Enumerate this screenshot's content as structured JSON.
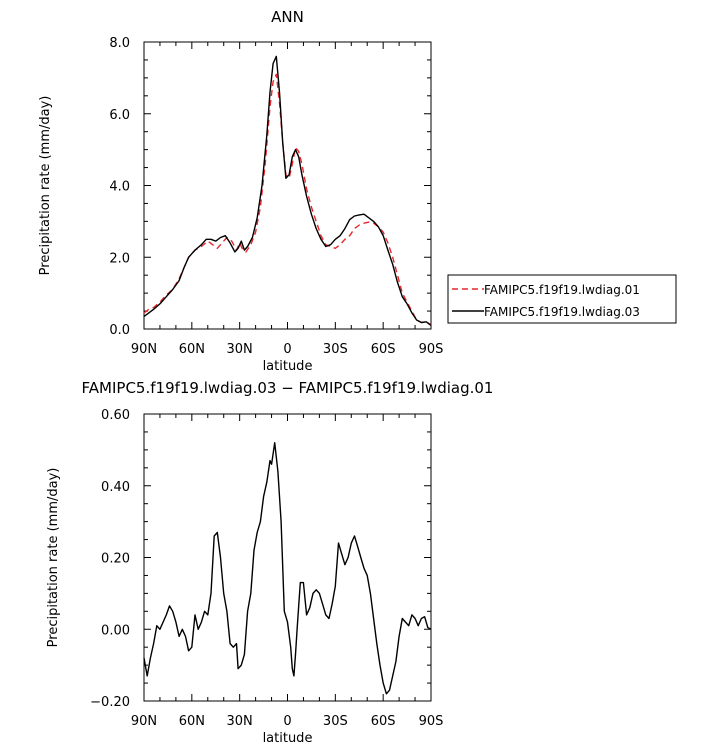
{
  "chart_data": [
    {
      "type": "line",
      "title": "ANN",
      "xlabel": "latitude",
      "ylabel": "Precipitation rate (mm/day)",
      "xlim": [
        90,
        -90
      ],
      "ylim": [
        0,
        8
      ],
      "x_ticks": [
        90,
        60,
        30,
        0,
        -30,
        -60,
        -90
      ],
      "x_tick_labels": [
        "90N",
        "60N",
        "30N",
        "0",
        "30S",
        "60S",
        "90S"
      ],
      "y_ticks": [
        0,
        2,
        4,
        6,
        8
      ],
      "y_tick_labels": [
        "0.0",
        "2.0",
        "4.0",
        "6.0",
        "8.0"
      ],
      "legend": "right",
      "series": [
        {
          "name": "FAMIPC5.f19f19.lwdiag.01",
          "color": "#e8262d",
          "dash": "dashed",
          "points": [
            [
              90,
              0.45
            ],
            [
              87,
              0.55
            ],
            [
              84,
              0.6
            ],
            [
              80,
              0.75
            ],
            [
              76,
              0.95
            ],
            [
              72,
              1.1
            ],
            [
              68,
              1.4
            ],
            [
              65,
              1.7
            ],
            [
              62,
              2.0
            ],
            [
              58,
              2.2
            ],
            [
              54,
              2.3
            ],
            [
              50,
              2.45
            ],
            [
              47,
              2.35
            ],
            [
              44,
              2.25
            ],
            [
              41,
              2.4
            ],
            [
              38,
              2.55
            ],
            [
              35,
              2.45
            ],
            [
              32,
              2.2
            ],
            [
              30,
              2.4
            ],
            [
              28,
              2.2
            ],
            [
              26,
              2.15
            ],
            [
              23,
              2.35
            ],
            [
              20,
              2.7
            ],
            [
              17,
              3.4
            ],
            [
              14,
              4.6
            ],
            [
              11,
              6.2
            ],
            [
              9,
              6.9
            ],
            [
              7,
              7.1
            ],
            [
              5,
              6.3
            ],
            [
              3,
              5.2
            ],
            [
              1,
              4.3
            ],
            [
              -1,
              4.2
            ],
            [
              -3,
              4.6
            ],
            [
              -5,
              5.05
            ],
            [
              -7,
              4.95
            ],
            [
              -9,
              4.6
            ],
            [
              -12,
              3.9
            ],
            [
              -15,
              3.4
            ],
            [
              -18,
              3.0
            ],
            [
              -21,
              2.6
            ],
            [
              -24,
              2.35
            ],
            [
              -27,
              2.3
            ],
            [
              -30,
              2.25
            ],
            [
              -33,
              2.35
            ],
            [
              -36,
              2.5
            ],
            [
              -39,
              2.6
            ],
            [
              -42,
              2.8
            ],
            [
              -45,
              2.9
            ],
            [
              -48,
              2.95
            ],
            [
              -51,
              2.98
            ],
            [
              -54,
              2.95
            ],
            [
              -57,
              2.85
            ],
            [
              -60,
              2.7
            ],
            [
              -63,
              2.4
            ],
            [
              -66,
              2.0
            ],
            [
              -69,
              1.5
            ],
            [
              -72,
              1.0
            ],
            [
              -75,
              0.75
            ],
            [
              -78,
              0.5
            ],
            [
              -81,
              0.25
            ],
            [
              -84,
              0.18
            ],
            [
              -87,
              0.2
            ],
            [
              -90,
              0.12
            ]
          ]
        },
        {
          "name": "FAMIPC5.f19f19.lwdiag.03",
          "color": "#000000",
          "dash": "solid",
          "points": [
            [
              90,
              0.35
            ],
            [
              87,
              0.45
            ],
            [
              84,
              0.55
            ],
            [
              80,
              0.7
            ],
            [
              76,
              0.9
            ],
            [
              72,
              1.1
            ],
            [
              68,
              1.35
            ],
            [
              65,
              1.7
            ],
            [
              62,
              2.0
            ],
            [
              58,
              2.2
            ],
            [
              54,
              2.35
            ],
            [
              51,
              2.5
            ],
            [
              48,
              2.5
            ],
            [
              45,
              2.45
            ],
            [
              42,
              2.55
            ],
            [
              39,
              2.6
            ],
            [
              36,
              2.4
            ],
            [
              33,
              2.15
            ],
            [
              31,
              2.25
            ],
            [
              29,
              2.45
            ],
            [
              27,
              2.2
            ],
            [
              25,
              2.3
            ],
            [
              22,
              2.55
            ],
            [
              19,
              3.1
            ],
            [
              16,
              4.0
            ],
            [
              13,
              5.4
            ],
            [
              11,
              6.6
            ],
            [
              9,
              7.4
            ],
            [
              7,
              7.6
            ],
            [
              5,
              6.6
            ],
            [
              3,
              5.2
            ],
            [
              1,
              4.2
            ],
            [
              -1,
              4.3
            ],
            [
              -3,
              4.8
            ],
            [
              -5,
              5.0
            ],
            [
              -7,
              4.8
            ],
            [
              -9,
              4.3
            ],
            [
              -12,
              3.7
            ],
            [
              -15,
              3.2
            ],
            [
              -18,
              2.8
            ],
            [
              -21,
              2.5
            ],
            [
              -24,
              2.3
            ],
            [
              -27,
              2.35
            ],
            [
              -30,
              2.5
            ],
            [
              -33,
              2.6
            ],
            [
              -36,
              2.8
            ],
            [
              -39,
              3.05
            ],
            [
              -42,
              3.15
            ],
            [
              -45,
              3.18
            ],
            [
              -48,
              3.2
            ],
            [
              -51,
              3.1
            ],
            [
              -54,
              3.0
            ],
            [
              -57,
              2.85
            ],
            [
              -60,
              2.6
            ],
            [
              -63,
              2.2
            ],
            [
              -66,
              1.8
            ],
            [
              -69,
              1.3
            ],
            [
              -72,
              0.9
            ],
            [
              -75,
              0.7
            ],
            [
              -78,
              0.45
            ],
            [
              -81,
              0.25
            ],
            [
              -84,
              0.18
            ],
            [
              -87,
              0.2
            ],
            [
              -90,
              0.1
            ]
          ]
        }
      ]
    },
    {
      "type": "line",
      "title": "FAMIPC5.f19f19.lwdiag.03 − FAMIPC5.f19f19.lwdiag.01",
      "xlabel": "latitude",
      "ylabel": "Precipitation rate (mm/day)",
      "xlim": [
        90,
        -90
      ],
      "ylim": [
        -0.2,
        0.6
      ],
      "x_ticks": [
        90,
        60,
        30,
        0,
        -30,
        -60,
        -90
      ],
      "x_tick_labels": [
        "90N",
        "60N",
        "30N",
        "0",
        "30S",
        "60S",
        "90S"
      ],
      "y_ticks": [
        -0.2,
        0,
        0.2,
        0.4,
        0.6
      ],
      "y_tick_labels": [
        "−0.20",
        "0.00",
        "0.20",
        "0.40",
        "0.60"
      ],
      "series": [
        {
          "color": "#000000",
          "dash": "solid",
          "points": [
            [
              90,
              -0.08
            ],
            [
              88,
              -0.13
            ],
            [
              86,
              -0.08
            ],
            [
              84,
              -0.04
            ],
            [
              82,
              0.01
            ],
            [
              80,
              0.0
            ],
            [
              78,
              0.02
            ],
            [
              76,
              0.04
            ],
            [
              74,
              0.065
            ],
            [
              72,
              0.05
            ],
            [
              70,
              0.02
            ],
            [
              68,
              -0.02
            ],
            [
              66,
              0.0
            ],
            [
              64,
              -0.02
            ],
            [
              62,
              -0.06
            ],
            [
              60,
              -0.05
            ],
            [
              58,
              0.04
            ],
            [
              56,
              0.0
            ],
            [
              54,
              0.02
            ],
            [
              52,
              0.05
            ],
            [
              50,
              0.04
            ],
            [
              48,
              0.1
            ],
            [
              46,
              0.26
            ],
            [
              44,
              0.27
            ],
            [
              42,
              0.2
            ],
            [
              40,
              0.1
            ],
            [
              38,
              0.05
            ],
            [
              36,
              -0.04
            ],
            [
              34,
              -0.05
            ],
            [
              32,
              -0.04
            ],
            [
              31,
              -0.11
            ],
            [
              29,
              -0.1
            ],
            [
              27,
              -0.07
            ],
            [
              25,
              0.05
            ],
            [
              23,
              0.1
            ],
            [
              21,
              0.22
            ],
            [
              19,
              0.27
            ],
            [
              17,
              0.3
            ],
            [
              15,
              0.37
            ],
            [
              13,
              0.41
            ],
            [
              11,
              0.47
            ],
            [
              10,
              0.46
            ],
            [
              8,
              0.52
            ],
            [
              6,
              0.44
            ],
            [
              4,
              0.3
            ],
            [
              2,
              0.05
            ],
            [
              0,
              0.02
            ],
            [
              -2,
              -0.05
            ],
            [
              -3,
              -0.11
            ],
            [
              -4,
              -0.13
            ],
            [
              -5,
              -0.07
            ],
            [
              -6,
              0.0
            ],
            [
              -8,
              0.13
            ],
            [
              -10,
              0.13
            ],
            [
              -12,
              0.04
            ],
            [
              -14,
              0.06
            ],
            [
              -16,
              0.1
            ],
            [
              -18,
              0.11
            ],
            [
              -20,
              0.1
            ],
            [
              -22,
              0.07
            ],
            [
              -24,
              0.04
            ],
            [
              -26,
              0.03
            ],
            [
              -28,
              0.07
            ],
            [
              -30,
              0.12
            ],
            [
              -32,
              0.24
            ],
            [
              -34,
              0.21
            ],
            [
              -36,
              0.18
            ],
            [
              -38,
              0.2
            ],
            [
              -40,
              0.24
            ],
            [
              -42,
              0.26
            ],
            [
              -44,
              0.23
            ],
            [
              -46,
              0.2
            ],
            [
              -48,
              0.17
            ],
            [
              -50,
              0.15
            ],
            [
              -52,
              0.1
            ],
            [
              -54,
              0.03
            ],
            [
              -56,
              -0.04
            ],
            [
              -58,
              -0.1
            ],
            [
              -60,
              -0.15
            ],
            [
              -62,
              -0.18
            ],
            [
              -64,
              -0.17
            ],
            [
              -66,
              -0.13
            ],
            [
              -68,
              -0.09
            ],
            [
              -70,
              -0.02
            ],
            [
              -72,
              0.03
            ],
            [
              -74,
              0.02
            ],
            [
              -76,
              0.01
            ],
            [
              -78,
              0.04
            ],
            [
              -80,
              0.03
            ],
            [
              -82,
              0.01
            ],
            [
              -84,
              0.03
            ],
            [
              -86,
              0.035
            ],
            [
              -88,
              0.005
            ],
            [
              -90,
              0.0
            ]
          ]
        }
      ]
    }
  ]
}
